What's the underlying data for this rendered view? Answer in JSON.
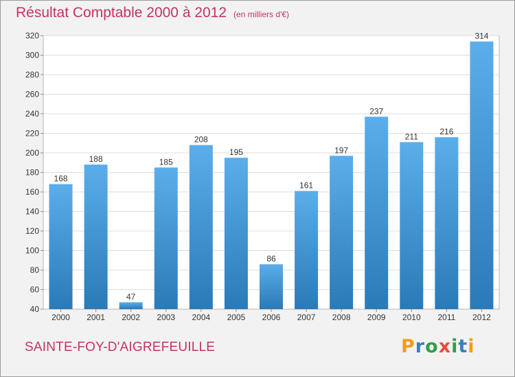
{
  "page": {
    "commune": "SAINTE-FOY-D'AIGREFEUILLE",
    "brand": {
      "letters": [
        "P",
        "r",
        "o",
        "x",
        "i",
        "t",
        "i"
      ],
      "colors": [
        "#f39c12",
        "#3a7fc1",
        "#2e9f49",
        "#e74c3c",
        "#2e9f49",
        "#3a7fc1",
        "#f39c12"
      ]
    }
  },
  "chart_data": {
    "type": "bar",
    "title": "Résultat Comptable 2000 à 2012",
    "subtitle": "(en milliers d'€)",
    "xlabel": "",
    "ylabel": "",
    "categories": [
      "2000",
      "2001",
      "2002",
      "2003",
      "2004",
      "2005",
      "2006",
      "2007",
      "2008",
      "2009",
      "2010",
      "2011",
      "2012"
    ],
    "values": [
      168,
      188,
      47,
      185,
      208,
      195,
      86,
      161,
      197,
      237,
      211,
      216,
      314
    ],
    "ylim": [
      40,
      320
    ],
    "yticks": [
      40,
      60,
      80,
      100,
      120,
      140,
      160,
      180,
      200,
      220,
      240,
      260,
      280,
      300,
      320
    ],
    "grid": true,
    "bar_color_top": "#5baee9",
    "bar_color_bottom": "#2a7ab8"
  }
}
